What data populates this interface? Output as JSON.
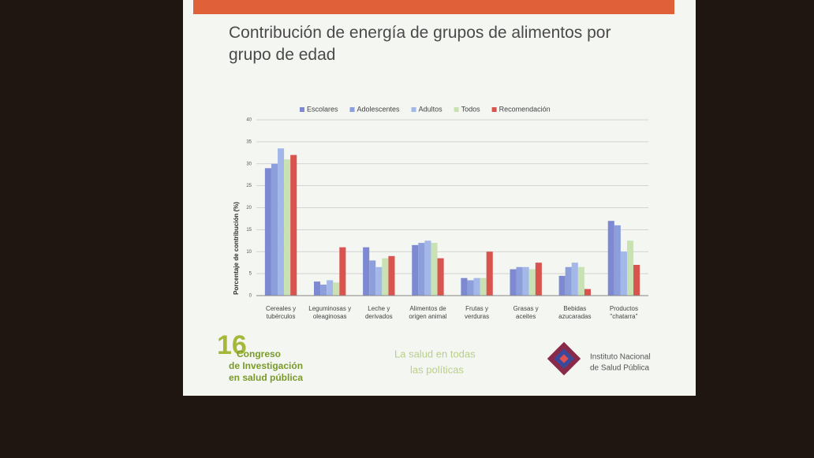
{
  "chart_data": {
    "type": "bar",
    "title": "Contribución de energía de grupos de alimentos por grupo de edad",
    "y_label": "Porcentaje de contribución (%)",
    "categories": [
      "Cereales y\ntubérculos",
      "Leguminosas y\noleaginosas",
      "Leche y\nderivados",
      "Alimentos de\norigen animal",
      "Frutas y\nverduras",
      "Grasas y\naceites",
      "Bebidas\nazucaradas",
      "Productos\n\"chatarra\""
    ],
    "series": [
      {
        "name": "Escolares",
        "color": "#7d8ad2",
        "values": [
          29,
          3.2,
          11,
          11.5,
          4,
          6,
          4.5,
          17
        ]
      },
      {
        "name": "Adolescentes",
        "color": "#8c9fdc",
        "values": [
          30,
          2.5,
          8,
          12,
          3.5,
          6.5,
          6.5,
          16
        ]
      },
      {
        "name": "Adultos",
        "color": "#a3b8e8",
        "values": [
          33.5,
          3.5,
          6.5,
          12.5,
          4,
          6.5,
          7.5,
          10
        ]
      },
      {
        "name": "Todos",
        "color": "#c9e2b4",
        "values": [
          31,
          3,
          8.5,
          12,
          4,
          6,
          6.5,
          12.5
        ]
      },
      {
        "name": "Recomendación",
        "color": "#d9534f",
        "values": [
          32,
          11,
          9,
          8.5,
          10,
          7.5,
          1.5,
          7
        ]
      }
    ],
    "ylim": [
      0,
      40
    ],
    "yticks": [
      0,
      5,
      10,
      15,
      20,
      25,
      30,
      35,
      40
    ],
    "grid": true
  },
  "footer": {
    "congress_number": "16",
    "congress_lines": [
      "Congreso",
      "de Investigación",
      "en salud pública"
    ],
    "slogan": [
      "La salud en todas",
      "las políticas"
    ],
    "institute": [
      "Instituto Nacional",
      "de Salud Pública"
    ]
  }
}
